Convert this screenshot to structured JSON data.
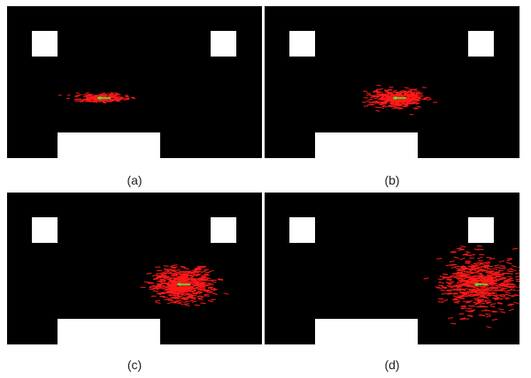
{
  "panels": [
    {
      "caption": "(a)",
      "spread": "narrow"
    },
    {
      "caption": "(b)",
      "spread": "small"
    },
    {
      "caption": "(c)",
      "spread": "medium"
    },
    {
      "caption": "(d)",
      "spread": "large"
    }
  ],
  "colors": {
    "background": "#000000",
    "obstacle": "#ffffff",
    "particle": "#ff1a1a",
    "estimate": "#33ff33"
  }
}
